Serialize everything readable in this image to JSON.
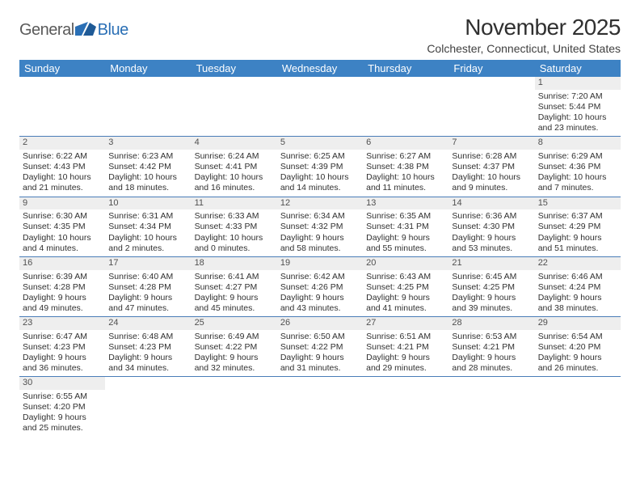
{
  "brand": {
    "part1": "General",
    "part2": "Blue"
  },
  "title": "November 2025",
  "location": "Colchester, Connecticut, United States",
  "colors": {
    "header_bg": "#3d82c4",
    "rule": "#4a7db8",
    "daynum_bg": "#eeeeee",
    "text": "#303030",
    "brand_gray": "#5a5a5a",
    "brand_blue": "#2a6fb5"
  },
  "days": [
    "Sunday",
    "Monday",
    "Tuesday",
    "Wednesday",
    "Thursday",
    "Friday",
    "Saturday"
  ],
  "weeks": [
    [
      {
        "empty": true
      },
      {
        "empty": true
      },
      {
        "empty": true
      },
      {
        "empty": true
      },
      {
        "empty": true
      },
      {
        "empty": true
      },
      {
        "n": 1,
        "sunrise": "7:20 AM",
        "sunset": "5:44 PM",
        "daylight": "10 hours and 23 minutes."
      }
    ],
    [
      {
        "n": 2,
        "sunrise": "6:22 AM",
        "sunset": "4:43 PM",
        "daylight": "10 hours and 21 minutes."
      },
      {
        "n": 3,
        "sunrise": "6:23 AM",
        "sunset": "4:42 PM",
        "daylight": "10 hours and 18 minutes."
      },
      {
        "n": 4,
        "sunrise": "6:24 AM",
        "sunset": "4:41 PM",
        "daylight": "10 hours and 16 minutes."
      },
      {
        "n": 5,
        "sunrise": "6:25 AM",
        "sunset": "4:39 PM",
        "daylight": "10 hours and 14 minutes."
      },
      {
        "n": 6,
        "sunrise": "6:27 AM",
        "sunset": "4:38 PM",
        "daylight": "10 hours and 11 minutes."
      },
      {
        "n": 7,
        "sunrise": "6:28 AM",
        "sunset": "4:37 PM",
        "daylight": "10 hours and 9 minutes."
      },
      {
        "n": 8,
        "sunrise": "6:29 AM",
        "sunset": "4:36 PM",
        "daylight": "10 hours and 7 minutes."
      }
    ],
    [
      {
        "n": 9,
        "sunrise": "6:30 AM",
        "sunset": "4:35 PM",
        "daylight": "10 hours and 4 minutes."
      },
      {
        "n": 10,
        "sunrise": "6:31 AM",
        "sunset": "4:34 PM",
        "daylight": "10 hours and 2 minutes."
      },
      {
        "n": 11,
        "sunrise": "6:33 AM",
        "sunset": "4:33 PM",
        "daylight": "10 hours and 0 minutes."
      },
      {
        "n": 12,
        "sunrise": "6:34 AM",
        "sunset": "4:32 PM",
        "daylight": "9 hours and 58 minutes."
      },
      {
        "n": 13,
        "sunrise": "6:35 AM",
        "sunset": "4:31 PM",
        "daylight": "9 hours and 55 minutes."
      },
      {
        "n": 14,
        "sunrise": "6:36 AM",
        "sunset": "4:30 PM",
        "daylight": "9 hours and 53 minutes."
      },
      {
        "n": 15,
        "sunrise": "6:37 AM",
        "sunset": "4:29 PM",
        "daylight": "9 hours and 51 minutes."
      }
    ],
    [
      {
        "n": 16,
        "sunrise": "6:39 AM",
        "sunset": "4:28 PM",
        "daylight": "9 hours and 49 minutes."
      },
      {
        "n": 17,
        "sunrise": "6:40 AM",
        "sunset": "4:28 PM",
        "daylight": "9 hours and 47 minutes."
      },
      {
        "n": 18,
        "sunrise": "6:41 AM",
        "sunset": "4:27 PM",
        "daylight": "9 hours and 45 minutes."
      },
      {
        "n": 19,
        "sunrise": "6:42 AM",
        "sunset": "4:26 PM",
        "daylight": "9 hours and 43 minutes."
      },
      {
        "n": 20,
        "sunrise": "6:43 AM",
        "sunset": "4:25 PM",
        "daylight": "9 hours and 41 minutes."
      },
      {
        "n": 21,
        "sunrise": "6:45 AM",
        "sunset": "4:25 PM",
        "daylight": "9 hours and 39 minutes."
      },
      {
        "n": 22,
        "sunrise": "6:46 AM",
        "sunset": "4:24 PM",
        "daylight": "9 hours and 38 minutes."
      }
    ],
    [
      {
        "n": 23,
        "sunrise": "6:47 AM",
        "sunset": "4:23 PM",
        "daylight": "9 hours and 36 minutes."
      },
      {
        "n": 24,
        "sunrise": "6:48 AM",
        "sunset": "4:23 PM",
        "daylight": "9 hours and 34 minutes."
      },
      {
        "n": 25,
        "sunrise": "6:49 AM",
        "sunset": "4:22 PM",
        "daylight": "9 hours and 32 minutes."
      },
      {
        "n": 26,
        "sunrise": "6:50 AM",
        "sunset": "4:22 PM",
        "daylight": "9 hours and 31 minutes."
      },
      {
        "n": 27,
        "sunrise": "6:51 AM",
        "sunset": "4:21 PM",
        "daylight": "9 hours and 29 minutes."
      },
      {
        "n": 28,
        "sunrise": "6:53 AM",
        "sunset": "4:21 PM",
        "daylight": "9 hours and 28 minutes."
      },
      {
        "n": 29,
        "sunrise": "6:54 AM",
        "sunset": "4:20 PM",
        "daylight": "9 hours and 26 minutes."
      }
    ],
    [
      {
        "n": 30,
        "sunrise": "6:55 AM",
        "sunset": "4:20 PM",
        "daylight": "9 hours and 25 minutes."
      },
      {
        "empty": true
      },
      {
        "empty": true
      },
      {
        "empty": true
      },
      {
        "empty": true
      },
      {
        "empty": true
      },
      {
        "empty": true
      }
    ]
  ],
  "labels": {
    "sunrise": "Sunrise:",
    "sunset": "Sunset:",
    "daylight": "Daylight:"
  }
}
